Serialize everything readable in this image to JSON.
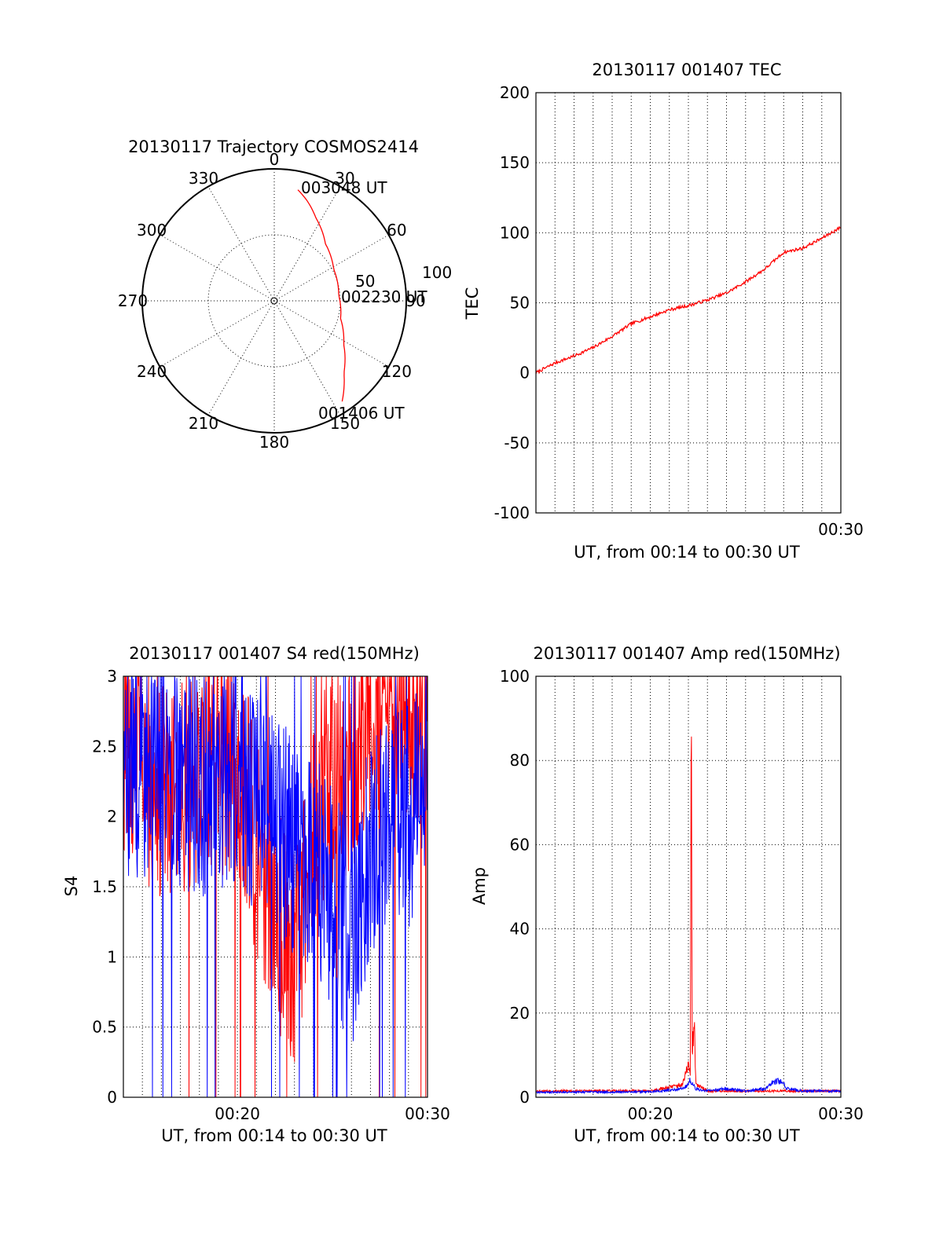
{
  "chart_data": [
    {
      "type": "polar",
      "title": "20130117 Trajectory COSMOS2414",
      "azimuth_ticks": [
        "0",
        "30",
        "60",
        "90",
        "120",
        "150",
        "180",
        "210",
        "240",
        "270",
        "300",
        "330"
      ],
      "elevation_ticks": [
        "50",
        "100"
      ],
      "trajectory_color": "#ff0000",
      "trajectory": {
        "azimuth_deg": [
          12,
          18,
          27,
          42,
          62,
          85,
          105,
          122,
          136,
          146
        ],
        "radius_frac": [
          0.86,
          0.8,
          0.7,
          0.58,
          0.51,
          0.49,
          0.52,
          0.62,
          0.76,
          0.92
        ]
      },
      "annotations": [
        {
          "text": "003048 UT"
        },
        {
          "text": "002230 UT"
        },
        {
          "text": "001406 UT"
        }
      ]
    },
    {
      "type": "line",
      "title": "20130117 001407 TEC",
      "xlabel": "UT, from 00:14 to 00:30 UT",
      "ylabel": "TEC",
      "xlim": [
        14,
        30
      ],
      "ylim": [
        -100,
        200
      ],
      "yticks": [
        "200",
        "150",
        "100",
        "50",
        "0",
        "-50",
        "-100"
      ],
      "xticks": [
        {
          "value": 30,
          "label": "00:30"
        }
      ],
      "series": [
        {
          "color": "#ff0000",
          "x": [
            14.0,
            15.0,
            16.0,
            17.0,
            18.0,
            19.0,
            20.0,
            21.0,
            22.0,
            23.0,
            24.0,
            25.0,
            26.0,
            27.0,
            28.0,
            29.0,
            30.0
          ],
          "values": [
            0,
            7,
            12,
            18,
            26,
            35,
            40,
            45,
            48,
            52,
            57,
            65,
            74,
            86,
            89,
            96,
            104
          ]
        }
      ]
    },
    {
      "type": "line",
      "title": "20130117 001407 S4 red(150MHz)",
      "xlabel": "UT, from 00:14 to 00:30 UT",
      "ylabel": "S4",
      "xlim": [
        14,
        30
      ],
      "ylim": [
        0,
        3
      ],
      "yticks": [
        "3",
        "2.5",
        "2",
        "1.5",
        "1",
        "0.5",
        "0"
      ],
      "xticks": [
        {
          "value": 20,
          "label": "00:20"
        },
        {
          "value": 30,
          "label": "00:30"
        }
      ],
      "series": [
        {
          "color": "#ff0000",
          "x": [
            14,
            16,
            18,
            20,
            21,
            22,
            23,
            24,
            25,
            26,
            27,
            28,
            29,
            30
          ],
          "values": [
            2.5,
            2.2,
            2.3,
            2.4,
            1.8,
            1.3,
            1.0,
            1.9,
            2.3,
            2.4,
            2.6,
            2.7,
            2.8,
            2.6
          ]
        },
        {
          "color": "#0000ff",
          "x": [
            14,
            16,
            18,
            20,
            21,
            22,
            23,
            24,
            25,
            26,
            27,
            28,
            29,
            30
          ],
          "values": [
            2.3,
            2.4,
            2.2,
            2.3,
            2.1,
            1.9,
            1.8,
            1.7,
            1.4,
            1.1,
            1.8,
            2.1,
            2.0,
            2.2
          ]
        }
      ]
    },
    {
      "type": "line",
      "title": "20130117 001407 Amp red(150MHz)",
      "xlabel": "UT, from 00:14 to 00:30 UT",
      "ylabel": "Amp",
      "xlim": [
        14,
        30
      ],
      "ylim": [
        0,
        100
      ],
      "yticks": [
        "100",
        "80",
        "60",
        "40",
        "20",
        "0"
      ],
      "xticks": [
        {
          "value": 20,
          "label": "00:20"
        },
        {
          "value": 30,
          "label": "00:30"
        }
      ],
      "series": [
        {
          "color": "#ff0000",
          "x": [
            14,
            20,
            21.7,
            22.0,
            22.1,
            22.15,
            22.2,
            22.3,
            22.4,
            23,
            30
          ],
          "values": [
            1.5,
            1.5,
            3,
            8,
            5,
            88,
            10,
            18,
            3,
            1.5,
            1.5
          ]
        },
        {
          "color": "#0000ff",
          "x": [
            14,
            20,
            21.8,
            22.1,
            22.4,
            23,
            24,
            25,
            26,
            26.4,
            26.8,
            27.2,
            28,
            30
          ],
          "values": [
            1.2,
            1.3,
            2,
            4,
            2,
            1.5,
            2,
            1.5,
            2,
            3.5,
            4,
            2,
            1.5,
            1.5
          ]
        }
      ]
    }
  ]
}
